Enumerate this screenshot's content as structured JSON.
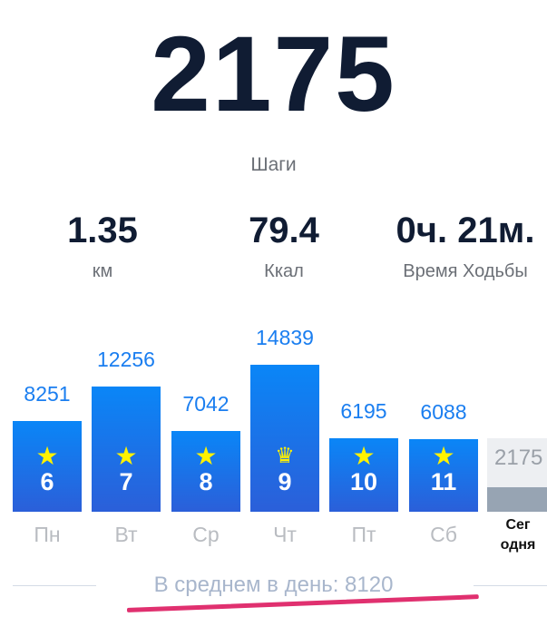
{
  "steps": {
    "value": "2175",
    "label": "Шаги"
  },
  "stats": [
    {
      "value": "1.35",
      "label": "км"
    },
    {
      "value": "79.4",
      "label": "Ккал"
    },
    {
      "value": "0ч. 21м.",
      "label": "Время Ходьбы"
    }
  ],
  "colors": {
    "bar_top": "#0a86f7",
    "bar_bottom": "#2b5fd9",
    "star": "#fff200",
    "accent_line": "#e0306f"
  },
  "week": [
    {
      "day": "Пн",
      "steps": 8251,
      "steps_label": "8251",
      "date": "6",
      "icon": "star-icon"
    },
    {
      "day": "Вт",
      "steps": 12256,
      "steps_label": "12256",
      "date": "7",
      "icon": "star-icon"
    },
    {
      "day": "Ср",
      "steps": 7042,
      "steps_label": "7042",
      "date": "8",
      "icon": "star-icon"
    },
    {
      "day": "Чт",
      "steps": 14839,
      "steps_label": "14839",
      "date": "9",
      "icon": "crown-icon"
    },
    {
      "day": "Пт",
      "steps": 6195,
      "steps_label": "6195",
      "date": "10",
      "icon": "star-icon"
    },
    {
      "day": "Сб",
      "steps": 6088,
      "steps_label": "6088",
      "date": "11",
      "icon": "star-icon"
    }
  ],
  "today": {
    "steps_label": "2175",
    "day_label": "Сег\nодня"
  },
  "average": {
    "label": "В среднем в день: 8120"
  }
}
